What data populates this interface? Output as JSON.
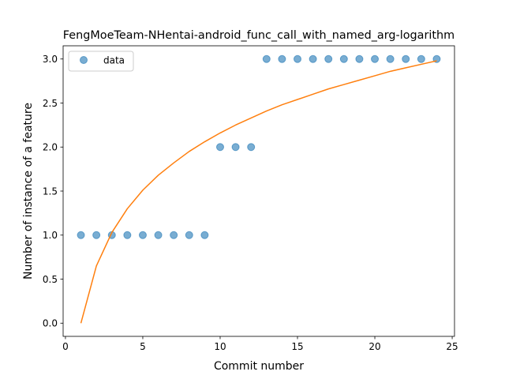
{
  "chart_data": {
    "type": "scatter",
    "title": "FengMoeTeam-NHentai-android_func_call_with_named_arg-logarithm",
    "xlabel": "Commit number",
    "ylabel": "Number of instance of a feature",
    "xlim": [
      -0.15,
      25.15
    ],
    "ylim": [
      -0.15,
      3.15
    ],
    "x_ticks": [
      0,
      5,
      10,
      15,
      20,
      25
    ],
    "y_ticks": [
      0.0,
      0.5,
      1.0,
      1.5,
      2.0,
      2.5,
      3.0
    ],
    "x_tick_labels": [
      "0",
      "5",
      "10",
      "15",
      "20",
      "25"
    ],
    "y_tick_labels": [
      "0.0",
      "0.5",
      "1.0",
      "1.5",
      "2.0",
      "2.5",
      "3.0"
    ],
    "grid": false,
    "legend": {
      "position": "top-left",
      "entries": [
        "data"
      ]
    },
    "series": [
      {
        "name": "data",
        "kind": "scatter",
        "color": "#1f77b4",
        "alpha": 0.6,
        "x": [
          1,
          2,
          3,
          4,
          5,
          6,
          7,
          8,
          9,
          10,
          11,
          12,
          13,
          14,
          15,
          16,
          17,
          18,
          19,
          20,
          21,
          22,
          23,
          24
        ],
        "y": [
          1,
          1,
          1,
          1,
          1,
          1,
          1,
          1,
          1,
          2,
          2,
          2,
          3,
          3,
          3,
          3,
          3,
          3,
          3,
          3,
          3,
          3,
          3,
          3
        ]
      },
      {
        "kind": "line",
        "color": "#ff7f0e",
        "x": [
          1,
          2,
          3,
          4,
          5,
          6,
          7,
          8,
          9,
          10,
          11,
          12,
          13,
          14,
          15,
          16,
          17,
          18,
          19,
          20,
          21,
          22,
          23,
          24
        ],
        "y": [
          0.0,
          0.65,
          1.03,
          1.3,
          1.51,
          1.68,
          1.82,
          1.95,
          2.06,
          2.16,
          2.25,
          2.33,
          2.41,
          2.48,
          2.54,
          2.6,
          2.66,
          2.71,
          2.76,
          2.81,
          2.86,
          2.9,
          2.94,
          2.98
        ]
      }
    ]
  }
}
